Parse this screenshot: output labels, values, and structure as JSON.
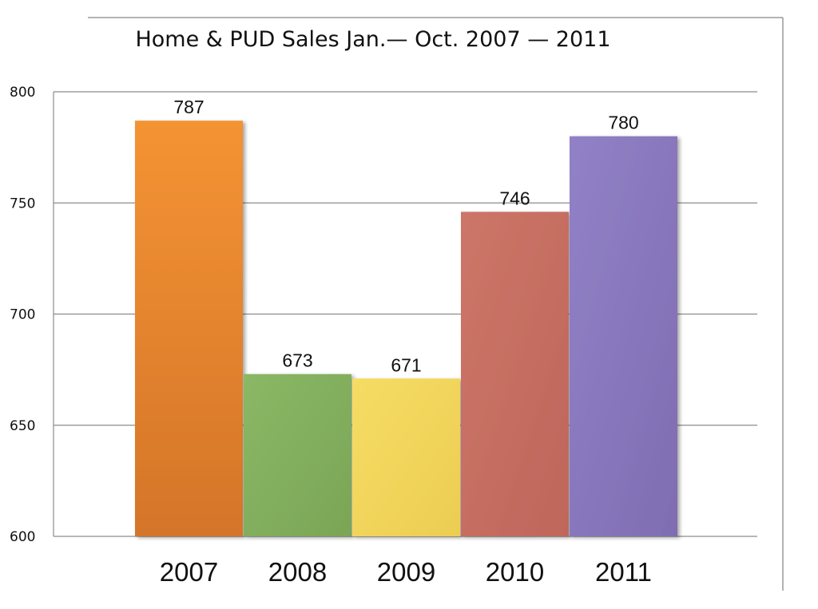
{
  "chart_data": {
    "type": "bar",
    "title": "Home & PUD Sales Jan.— Oct. 2007 — 2011",
    "xlabel": "",
    "ylabel": "",
    "categories": [
      "2007",
      "2008",
      "2009",
      "2010",
      "2011"
    ],
    "values": [
      787,
      673,
      671,
      746,
      780
    ],
    "value_labels": [
      "787",
      "673",
      "671",
      "746",
      "780"
    ],
    "ylim": [
      600,
      800
    ],
    "yticks": [
      600,
      650,
      700,
      750,
      800
    ],
    "ytick_labels": [
      "600",
      "650",
      "700",
      "750",
      "800"
    ],
    "grid": true,
    "legend": "none",
    "colors": [
      "#e8852a",
      "#86b062",
      "#f0d65c",
      "#c86e62",
      "#8a78bd"
    ]
  }
}
